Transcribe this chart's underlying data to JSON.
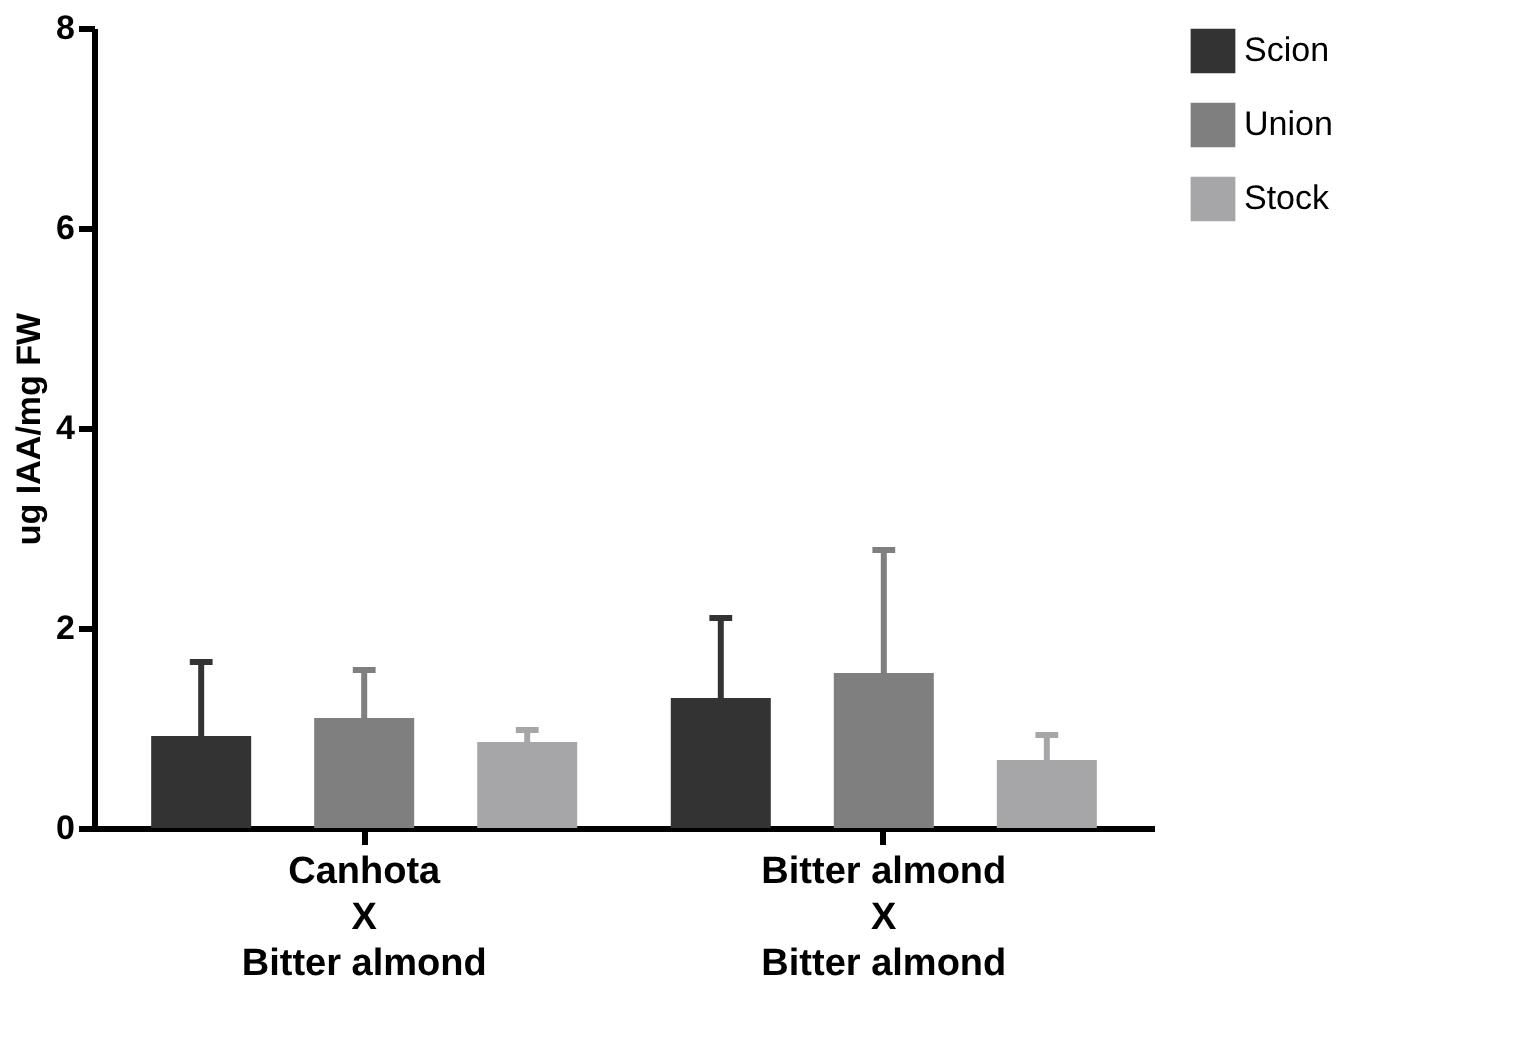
{
  "chart_data": {
    "type": "bar",
    "ylabel": "ug IAA/mg FW",
    "categories": [
      "Canhota\nX\nBitter almond",
      "Bitter almond\nX\nBitter almond"
    ],
    "series": [
      {
        "name": "Scion",
        "color": "#333333",
        "values": [
          0.92,
          1.3
        ],
        "errors": [
          [
            0.92,
            1.66
          ],
          [
            1.3,
            2.1
          ]
        ]
      },
      {
        "name": "Union",
        "color": "#7f7f7f",
        "values": [
          1.1,
          1.55
        ],
        "errors": [
          [
            1.1,
            1.58
          ],
          [
            1.55,
            2.78
          ]
        ]
      },
      {
        "name": "Stock",
        "color": "#a6a6a9",
        "values": [
          0.86,
          0.68
        ],
        "errors": [
          [
            0.86,
            0.98
          ],
          [
            0.68,
            0.93
          ]
        ]
      }
    ],
    "ylim": [
      0,
      8
    ],
    "yticks": [
      0,
      2,
      4,
      6,
      8
    ],
    "grid": false,
    "legend": "right"
  }
}
